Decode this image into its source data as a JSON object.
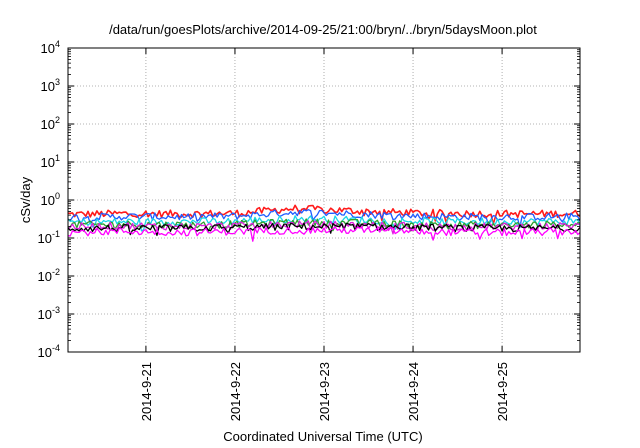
{
  "chart_data": {
    "type": "line",
    "title": "/data/run/goesPlots/archive/2014-09-25/21:00/bryn/../bryn/5daysMoon.plot",
    "xlabel": "Coordinated Universal Time (UTC)",
    "ylabel": "cSv/day",
    "yscale": "log",
    "ylim": [
      0.0001,
      10000
    ],
    "xlim": [
      "2014-09-20 03:00",
      "2014-09-25 21:00"
    ],
    "y_ticks": [
      {
        "base": "10",
        "exp": "-4"
      },
      {
        "base": "10",
        "exp": "-3"
      },
      {
        "base": "10",
        "exp": "-2"
      },
      {
        "base": "10",
        "exp": "-1"
      },
      {
        "base": "10",
        "exp": "0"
      },
      {
        "base": "10",
        "exp": "1"
      },
      {
        "base": "10",
        "exp": "2"
      },
      {
        "base": "10",
        "exp": "3"
      },
      {
        "base": "10",
        "exp": "4"
      }
    ],
    "x_ticks": [
      "2014-9-21",
      "2014-9-22",
      "2014-9-23",
      "2014-9-24",
      "2014-9-25"
    ],
    "grid": true,
    "series": [
      {
        "color": "#ff1a1a",
        "values": [
          0.42,
          0.44,
          0.43,
          0.45,
          0.6,
          0.52,
          0.46,
          0.44,
          0.43,
          0.44
        ]
      },
      {
        "color": "#1e5cff",
        "values": [
          0.35,
          0.37,
          0.36,
          0.38,
          0.48,
          0.43,
          0.38,
          0.36,
          0.36,
          0.37
        ]
      },
      {
        "color": "#19d6e6",
        "values": [
          0.26,
          0.27,
          0.27,
          0.28,
          0.32,
          0.3,
          0.28,
          0.27,
          0.27,
          0.27
        ]
      },
      {
        "color": "#2ca02c",
        "values": [
          0.22,
          0.23,
          0.22,
          0.23,
          0.26,
          0.25,
          0.23,
          0.22,
          0.22,
          0.23
        ]
      },
      {
        "color": "#e01ee0",
        "values": [
          0.2,
          0.21,
          0.2,
          0.21,
          0.23,
          0.22,
          0.21,
          0.2,
          0.2,
          0.21
        ]
      },
      {
        "color": "#000000",
        "values": [
          0.18,
          0.18,
          0.18,
          0.19,
          0.2,
          0.2,
          0.19,
          0.18,
          0.18,
          0.18
        ]
      },
      {
        "color": "#ff00ff",
        "values": [
          0.14,
          0.15,
          0.14,
          0.15,
          0.16,
          0.16,
          0.15,
          0.14,
          0.14,
          0.15
        ]
      }
    ]
  }
}
